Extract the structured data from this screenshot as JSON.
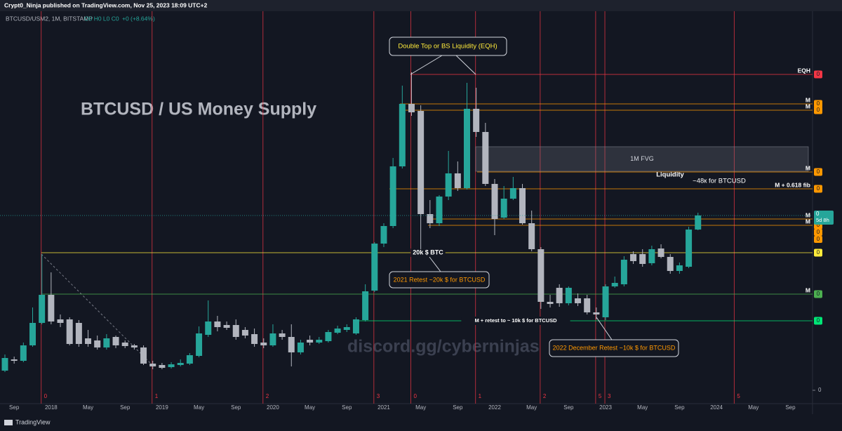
{
  "header": {
    "publisher": "Crypt0_Ninja published on TradingView.com, Nov 25, 2023 18:09 UTC+2",
    "symbol_legend": "BTCUSD/USM2, 1M, BITSTAMP",
    "ohlc_legend": "O0 H0 L0 C0",
    "change": "+0 (+8.64%)"
  },
  "footer": {
    "brand": "TradingView"
  },
  "chart_data": {
    "type": "candlestick",
    "title": "BTCUSD / US Money Supply",
    "watermark": "discord.gg/cyberninjas",
    "categories": [
      null,
      "Sep",
      null,
      null,
      null,
      "2018",
      null,
      null,
      null,
      "May",
      null,
      null,
      null,
      "Sep",
      null,
      null,
      null,
      "2019",
      null,
      null,
      null,
      "May",
      null,
      null,
      null,
      "Sep",
      null,
      null,
      null,
      "2020",
      null,
      null,
      null,
      "May",
      null,
      null,
      null,
      "Sep",
      null,
      null,
      null,
      "2021",
      null,
      null,
      null,
      "May",
      null,
      null,
      null,
      "Sep",
      null,
      null,
      null,
      "2022",
      null,
      null,
      null,
      "May",
      null,
      null,
      null,
      "Sep",
      null,
      null,
      null,
      "2023",
      null,
      null,
      null,
      "May",
      null,
      null,
      null,
      "Sep",
      null,
      null,
      null,
      "2024",
      null,
      null,
      null,
      "May",
      null,
      null,
      null,
      "Sep"
    ],
    "open": [
      28,
      44,
      42,
      64,
      96,
      136,
      101,
      101,
      96,
      74,
      71,
      61,
      76,
      68,
      64,
      61,
      38,
      36,
      33,
      36,
      38,
      49,
      79,
      98,
      93,
      93,
      86,
      80,
      68,
      64,
      81,
      76,
      54,
      72,
      68,
      70,
      82,
      86,
      81,
      100,
      142,
      209,
      234,
      319,
      408,
      398,
      251,
      238,
      276,
      309,
      288,
      401,
      368,
      294,
      246,
      273,
      288,
      238,
      201,
      126,
      146,
      124,
      131,
      131,
      111,
      104,
      148,
      151,
      194,
      194,
      181,
      202,
      190,
      170,
      176,
      229,
      null,
      null,
      null,
      null,
      null,
      null,
      null,
      null,
      null,
      null
    ],
    "high": [
      51,
      48,
      68,
      118,
      194,
      168,
      108,
      104,
      100,
      86,
      78,
      80,
      78,
      71,
      66,
      64,
      42,
      39,
      40,
      44,
      53,
      91,
      128,
      106,
      98,
      101,
      90,
      88,
      74,
      94,
      86,
      94,
      72,
      78,
      76,
      86,
      92,
      94,
      104,
      151,
      211,
      238,
      331,
      434,
      453,
      406,
      271,
      278,
      341,
      326,
      438,
      431,
      381,
      301,
      291,
      304,
      294,
      256,
      204,
      136,
      151,
      148,
      138,
      136,
      118,
      151,
      162,
      191,
      198,
      201,
      206,
      208,
      194,
      182,
      233,
      253,
      null,
      null,
      null,
      null,
      null,
      null,
      null,
      null,
      null,
      null
    ],
    "low": [
      26,
      38,
      40,
      62,
      94,
      94,
      90,
      64,
      62,
      62,
      58,
      58,
      60,
      60,
      58,
      36,
      30,
      30,
      31,
      34,
      36,
      47,
      76,
      84,
      86,
      72,
      74,
      62,
      60,
      62,
      72,
      34,
      51,
      64,
      66,
      68,
      80,
      83,
      79,
      98,
      140,
      204,
      231,
      316,
      391,
      201,
      231,
      234,
      271,
      284,
      286,
      361,
      291,
      221,
      244,
      271,
      236,
      198,
      116,
      118,
      119,
      121,
      120,
      108,
      101,
      100,
      146,
      148,
      180,
      176,
      178,
      188,
      166,
      166,
      174,
      228,
      null,
      null,
      null,
      null,
      null,
      null,
      null,
      null,
      null,
      null
    ],
    "close": [
      46,
      42,
      64,
      96,
      136,
      98,
      96,
      66,
      66,
      66,
      61,
      74,
      64,
      63,
      61,
      38,
      34,
      32,
      37,
      39,
      50,
      81,
      98,
      90,
      89,
      76,
      78,
      66,
      64,
      81,
      76,
      54,
      68,
      68,
      72,
      83,
      88,
      90,
      101,
      141,
      209,
      234,
      319,
      408,
      396,
      251,
      238,
      276,
      309,
      288,
      401,
      368,
      294,
      244,
      273,
      288,
      238,
      201,
      126,
      123,
      124,
      146,
      124,
      111,
      108,
      148,
      153,
      186,
      184,
      180,
      201,
      190,
      170,
      178,
      229,
      249,
      null,
      null,
      null,
      null,
      null,
      null,
      null,
      null,
      null,
      null
    ],
    "up_color": "#26a69a",
    "down_color": "#b2b5be",
    "ylim": [
      -19,
      526
    ],
    "yticks": [
      0
    ],
    "levels": [
      {
        "label": "EQH",
        "value": 450,
        "color": "#f23645",
        "badge": 0
      },
      {
        "label": "M",
        "value": 408,
        "color": "#ff9800",
        "badge": 0
      },
      {
        "label": "M",
        "value": 399,
        "color": "#ff9800",
        "badge": 0
      },
      {
        "label": "M",
        "value": 311,
        "color": "#ff9800",
        "badge": 0
      },
      {
        "label": "M + 0.618 fib",
        "value": 287,
        "color": "#ff9800",
        "badge": 0
      },
      {
        "label": "M",
        "value": 244,
        "color": "#ff9800",
        "badge": 0
      },
      {
        "label": "M",
        "value": 235,
        "color": "#ff9800",
        "badge": 0
      },
      {
        "label": "20k $ BTC",
        "value": 196,
        "color": "#ffeb3b",
        "badge": 0
      },
      {
        "label": "M",
        "value": 137,
        "color": "#4caf50",
        "badge": 0
      },
      {
        "label": "M + retest to ~ 10k $ for BTCUSD",
        "value": 99,
        "color": "#00e676",
        "badge": 0
      }
    ],
    "extra_badges": [
      0,
      0
    ],
    "last_price": {
      "badge": 0,
      "countdown": "5d 8h",
      "color": "#26a69a"
    },
    "fvg": {
      "label": "1M FVG",
      "top": 347,
      "bottom": 312
    },
    "annotations": {
      "double_top": "Double Top or BS Liquidity (EQH)",
      "liquidity": "Liquidity",
      "liquidity_target": "~48к for BTCUSD",
      "retest_2021": "2021 Retest ~20k $ for BTCUSD",
      "retest_2022": "2022 December Retest ~10k $ for BTCUSD"
    },
    "cycle_markers": [
      "0",
      "1",
      "2",
      "3",
      "0",
      "1",
      "2",
      "5",
      "3",
      "5"
    ],
    "cycle_color": "#f23645"
  }
}
